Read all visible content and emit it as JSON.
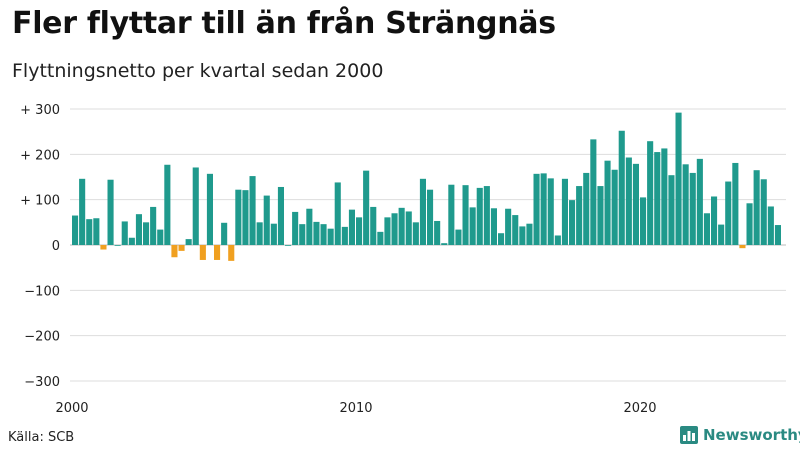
{
  "title": "Fler flyttar till än från Strängnäs",
  "subtitle": "Flyttningsnetto per kvartal sedan 2000",
  "source": "Källa: SCB",
  "brand": {
    "name": "Newsworthy",
    "icon": "bar-chart-icon"
  },
  "colors": {
    "positive": "#1f9a8d",
    "negative": "#f0a020",
    "grid": "#dddddd",
    "brand": "#2a8a82"
  },
  "chart_data": {
    "type": "bar",
    "x_start_year": 2000,
    "periods_per_year": 4,
    "ylim": [
      -300,
      300
    ],
    "yticks": [
      {
        "value": 300,
        "label": "+ 300"
      },
      {
        "value": 200,
        "label": "+ 200"
      },
      {
        "value": 100,
        "label": "+ 100"
      },
      {
        "value": 0,
        "label": "0"
      },
      {
        "value": -100,
        "label": "−100"
      },
      {
        "value": -200,
        "label": "−200"
      },
      {
        "value": -300,
        "label": "−300"
      }
    ],
    "xticks": [
      {
        "value": 2000,
        "label": "2000"
      },
      {
        "value": 2010,
        "label": "2010"
      },
      {
        "value": 2020,
        "label": "2020"
      }
    ],
    "values": [
      65,
      146,
      57,
      59,
      -10,
      144,
      0,
      52,
      16,
      68,
      50,
      84,
      34,
      177,
      -27,
      -13,
      13,
      171,
      -33,
      157,
      -33,
      49,
      -35,
      122,
      121,
      152,
      50,
      109,
      47,
      128,
      0,
      73,
      46,
      80,
      51,
      46,
      36,
      138,
      40,
      78,
      61,
      164,
      84,
      29,
      61,
      70,
      82,
      74,
      50,
      146,
      122,
      53,
      4,
      133,
      34,
      132,
      83,
      126,
      130,
      81,
      26,
      80,
      66,
      41,
      47,
      157,
      158,
      147,
      21,
      146,
      99,
      130,
      159,
      233,
      130,
      186,
      166,
      252,
      193,
      179,
      105,
      229,
      205,
      213,
      154,
      292,
      178,
      159,
      190,
      70,
      107,
      45,
      140,
      181,
      -7,
      92,
      165,
      145,
      85,
      44
    ]
  }
}
